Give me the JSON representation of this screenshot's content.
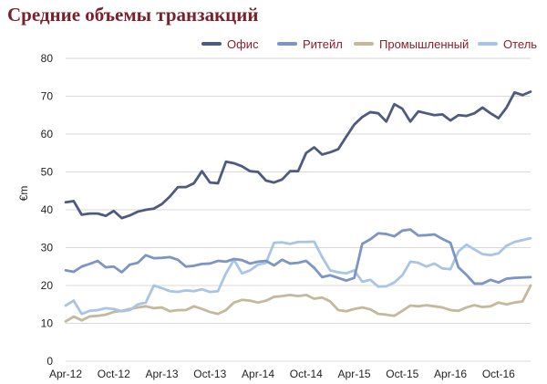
{
  "chart_data": {
    "type": "line",
    "title": "Средние объемы транзакций",
    "ylabel": "€m",
    "xlabel": "",
    "ylim": [
      0,
      80
    ],
    "yticks": [
      0,
      10,
      20,
      30,
      40,
      50,
      60,
      70,
      80
    ],
    "grid": true,
    "legend_position": "top",
    "x_tick_labels": [
      "Apr-12",
      "Oct-12",
      "Apr-13",
      "Oct-13",
      "Apr-14",
      "Oct-14",
      "Apr-15",
      "Oct-15",
      "Apr-16",
      "Oct-16"
    ],
    "x": [
      "Apr-12",
      "May-12",
      "Jun-12",
      "Jul-12",
      "Aug-12",
      "Sep-12",
      "Oct-12",
      "Nov-12",
      "Dec-12",
      "Jan-13",
      "Feb-13",
      "Mar-13",
      "Apr-13",
      "May-13",
      "Jun-13",
      "Jul-13",
      "Aug-13",
      "Sep-13",
      "Oct-13",
      "Nov-13",
      "Dec-13",
      "Jan-14",
      "Feb-14",
      "Mar-14",
      "Apr-14",
      "May-14",
      "Jun-14",
      "Jul-14",
      "Aug-14",
      "Sep-14",
      "Oct-14",
      "Nov-14",
      "Dec-14",
      "Jan-15",
      "Feb-15",
      "Mar-15",
      "Apr-15",
      "May-15",
      "Jun-15",
      "Jul-15",
      "Aug-15",
      "Sep-15",
      "Oct-15",
      "Nov-15",
      "Dec-15",
      "Jan-16",
      "Feb-16",
      "Mar-16",
      "Apr-16",
      "May-16",
      "Jun-16",
      "Jul-16",
      "Aug-16",
      "Sep-16",
      "Oct-16",
      "Nov-16",
      "Dec-16",
      "Jan-17",
      "Feb-17"
    ],
    "series": [
      {
        "name": "Офис",
        "color": "#4f5b7e",
        "values": [
          42,
          42.3,
          38.7,
          39,
          39,
          38.4,
          39.7,
          37.8,
          38.5,
          39.5,
          40,
          40.3,
          41.5,
          43.5,
          46,
          46,
          47,
          50.2,
          47.2,
          47,
          52.7,
          52.3,
          51.5,
          50.2,
          50,
          47.7,
          47.2,
          48,
          50.2,
          50.2,
          55,
          56.5,
          54.6,
          55.2,
          56,
          59.3,
          62.5,
          64.5,
          65.8,
          65.5,
          63.3,
          67.9,
          66.7,
          63.3,
          66,
          65.5,
          65,
          65.2,
          63.6,
          65,
          64.8,
          65.5,
          67,
          65.5,
          64.2,
          67,
          71,
          70.3,
          71.2
        ]
      },
      {
        "name": "Ритейл",
        "color": "#7d95c4",
        "values": [
          24,
          23.6,
          25,
          25.7,
          26.5,
          24.8,
          25,
          23.5,
          25.5,
          26,
          28,
          27.2,
          27.3,
          27.5,
          26.8,
          25,
          25.2,
          25.7,
          25.8,
          26.5,
          26.3,
          27,
          26.7,
          25.8,
          26.3,
          26.5,
          25.3,
          26.8,
          25.8,
          26,
          26.5,
          24.7,
          22.2,
          22.7,
          22,
          21.3,
          22,
          31,
          32.2,
          33.8,
          33.6,
          33,
          34.5,
          34.8,
          33.2,
          33.3,
          33.5,
          32.3,
          31.3,
          24.8,
          22.8,
          20.5,
          20.5,
          21.5,
          20.8,
          21.8,
          22,
          22.1,
          22.2
        ]
      },
      {
        "name": "Промышленный",
        "color": "#c4b89d",
        "values": [
          10.5,
          11.8,
          10.8,
          11.8,
          12,
          12.3,
          13,
          13.3,
          13.8,
          14.2,
          14.5,
          14,
          14.2,
          13.2,
          13.5,
          13.5,
          14.5,
          13.8,
          13,
          12.5,
          13.5,
          15.5,
          16.2,
          16,
          15.5,
          16,
          17,
          17.2,
          17.5,
          17.2,
          17.5,
          16.5,
          16.8,
          15.8,
          13.5,
          13.2,
          13.8,
          14.2,
          13.7,
          12.5,
          12.3,
          12,
          13.3,
          14.7,
          14.5,
          14.8,
          14.5,
          14.2,
          13.5,
          13.3,
          14.2,
          14.8,
          14.3,
          14.5,
          15.5,
          15,
          15.5,
          15.8,
          20
        ]
      },
      {
        "name": "Отель",
        "color": "#a9c5e6",
        "values": [
          14.7,
          16,
          12.5,
          13.3,
          13.5,
          14,
          13.8,
          13.2,
          13.5,
          15,
          15.5,
          20,
          19.3,
          18.5,
          18.3,
          18.7,
          18.5,
          19,
          18.3,
          18.5,
          23.2,
          26.8,
          23.2,
          24,
          25.5,
          26,
          31.3,
          31.4,
          31,
          31.5,
          31.5,
          31.6,
          27.5,
          24,
          23.5,
          23.2,
          24,
          21,
          21.5,
          19.7,
          19.8,
          20.8,
          22.7,
          26.3,
          26,
          25,
          25.8,
          24.5,
          24.3,
          29,
          30.8,
          29.5,
          28.3,
          28,
          28.5,
          30.5,
          31.5,
          32,
          32.5
        ]
      }
    ]
  }
}
